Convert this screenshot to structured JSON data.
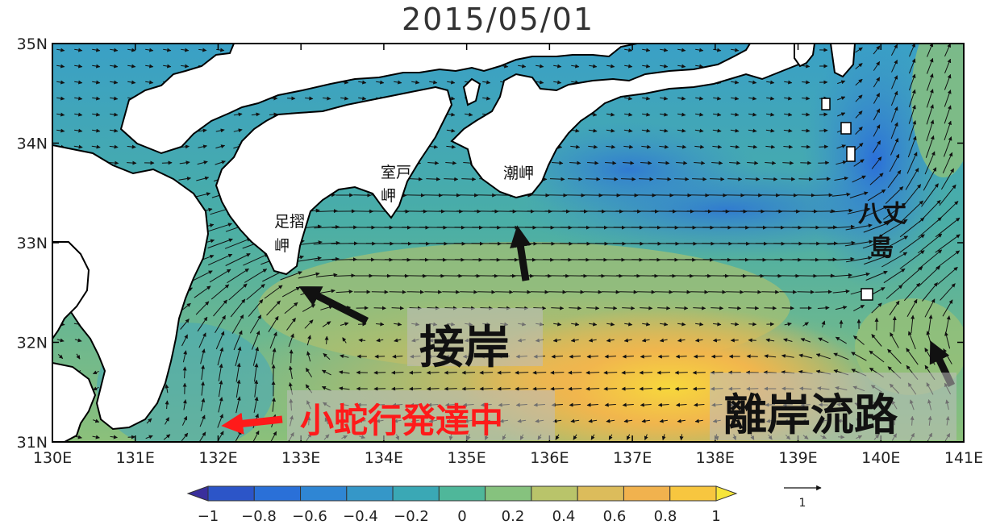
{
  "title": "2015/05/01",
  "axes": {
    "x_ticks": [
      "130E",
      "131E",
      "132E",
      "133E",
      "134E",
      "135E",
      "136E",
      "137E",
      "138E",
      "139E",
      "140E",
      "141E"
    ],
    "y_ticks": [
      "31N",
      "32N",
      "33N",
      "34N",
      "35N"
    ],
    "lon_range": [
      130,
      141
    ],
    "lat_range": [
      31,
      35
    ]
  },
  "colorbar": {
    "ticks": [
      "−1",
      "−0.8",
      "−0.6",
      "−0.4",
      "−0.2",
      "0",
      "0.2",
      "0.4",
      "0.6",
      "0.8",
      "1"
    ],
    "colors": [
      "#3a2f9c",
      "#2c55c8",
      "#2a70d8",
      "#2f86d4",
      "#3597c8",
      "#3aa8b5",
      "#4fb79a",
      "#86c27e",
      "#b9c46a",
      "#dcbc5b",
      "#f1b24e",
      "#f7c63f",
      "#f6e53a"
    ]
  },
  "vector_reference": {
    "label": "1"
  },
  "places": {
    "ashizuri_1": "足摺",
    "ashizuri_2": "岬",
    "muroto_1": "室戸",
    "muroto_2": "岬",
    "shiono": "潮岬",
    "hachijo_1": "八丈",
    "hachijo_2": "島"
  },
  "annotations": {
    "approach": "接岸",
    "small_meander": "小蛇行発達中",
    "offshore_path": "離岸流路"
  },
  "colors": {
    "land": "#ffffff",
    "coast": "#000000",
    "small_meander_text": "#ff1a1a",
    "arrow": "#111111"
  }
}
